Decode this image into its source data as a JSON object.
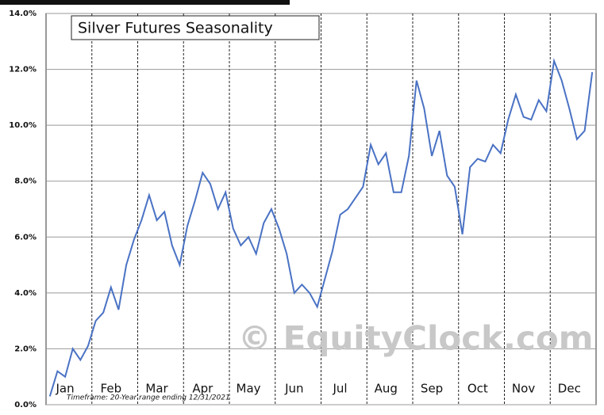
{
  "chart_data": {
    "type": "line",
    "title": "Silver Futures Seasonality",
    "watermark": "© EquityClock.com",
    "footnote": "Timeframe: 20-Year range ending 12/31/2021",
    "categories": [
      null,
      null,
      "Jan",
      null,
      null,
      null,
      null,
      null,
      "Feb",
      null,
      null,
      null,
      null,
      null,
      "Mar",
      null,
      null,
      null,
      null,
      null,
      "Apr",
      null,
      null,
      null,
      null,
      null,
      "May",
      null,
      null,
      null,
      null,
      null,
      "Jun",
      null,
      null,
      null,
      null,
      null,
      "Jul",
      null,
      null,
      null,
      null,
      null,
      "Aug",
      null,
      null,
      null,
      null,
      null,
      "Sep",
      null,
      null,
      null,
      null,
      null,
      "Oct",
      null,
      null,
      null,
      null,
      null,
      "Nov",
      null,
      null,
      null,
      null,
      null,
      "Dec",
      null,
      null,
      null
    ],
    "series": [
      {
        "name": "Silver Futures",
        "color": "#4a72c4",
        "values": [
          0.3,
          1.2,
          1.0,
          2.0,
          1.6,
          2.1,
          3.0,
          3.3,
          4.2,
          3.4,
          5.0,
          5.9,
          6.6,
          7.5,
          6.6,
          6.9,
          5.7,
          5.0,
          6.4,
          7.3,
          8.3,
          7.9,
          7.0,
          7.6,
          6.3,
          5.7,
          6.0,
          5.4,
          6.5,
          7.0,
          6.3,
          5.4,
          4.0,
          4.3,
          4.0,
          3.5,
          4.5,
          5.5,
          6.8,
          7.0,
          7.4,
          7.8,
          9.3,
          8.6,
          9.0,
          7.6,
          7.6,
          8.9,
          11.6,
          10.6,
          8.9,
          9.8,
          8.2,
          7.8,
          6.1,
          8.5,
          8.8,
          8.7,
          9.3,
          9.0,
          10.2,
          11.1,
          10.3,
          10.2,
          10.9,
          10.5,
          12.3,
          11.6,
          10.6,
          9.5,
          9.8,
          11.9
        ]
      }
    ],
    "ylim": [
      0,
      14
    ],
    "yticks": [
      {
        "value": 0,
        "label": "0.0%"
      },
      {
        "value": 2,
        "label": "2.0%"
      },
      {
        "value": 4,
        "label": "4.0%"
      },
      {
        "value": 6,
        "label": "6.0%"
      },
      {
        "value": 8,
        "label": "8.0%"
      },
      {
        "value": 10,
        "label": "10.0%"
      },
      {
        "value": 12,
        "label": "12.0%"
      },
      {
        "value": 14,
        "label": "14.0%"
      }
    ],
    "grid": true
  }
}
